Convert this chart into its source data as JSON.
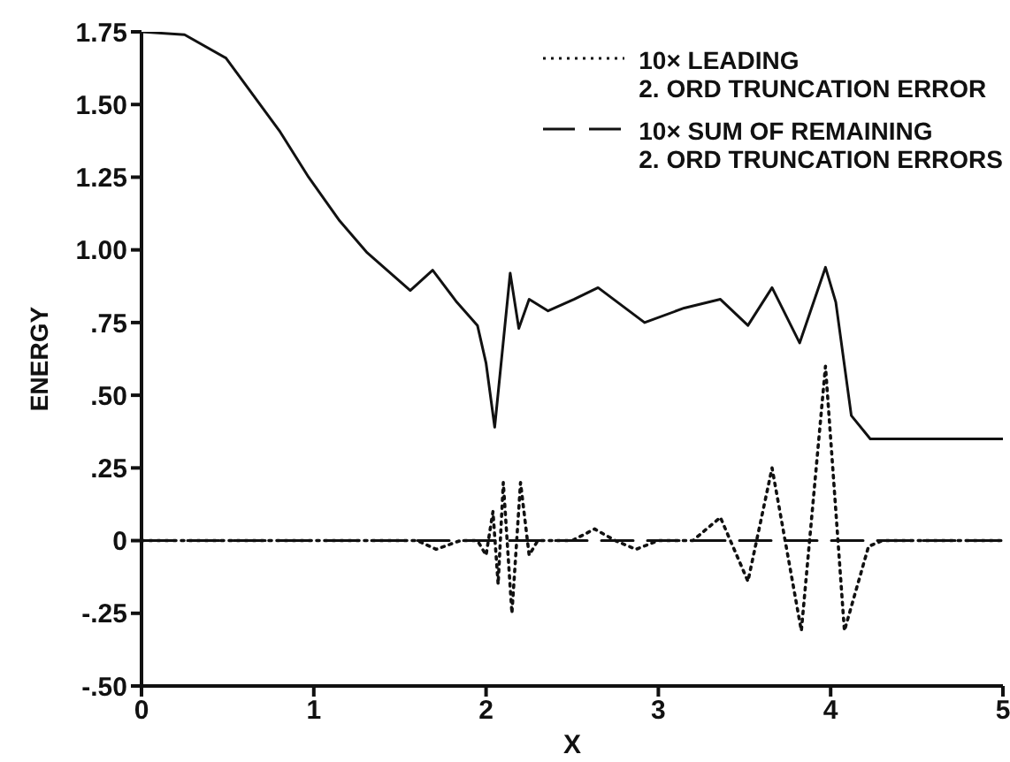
{
  "chart_data": {
    "type": "line",
    "xlabel": "X",
    "ylabel": "ENERGY",
    "xlim": [
      0,
      5
    ],
    "xticks": [
      0,
      1,
      2,
      3,
      4,
      5
    ],
    "ylim": [
      -0.5,
      1.75
    ],
    "yticks": [
      {
        "value": -0.5,
        "label": "-.50"
      },
      {
        "value": -0.25,
        "label": "-.25"
      },
      0,
      {
        "value": 0.25,
        "label": ".25"
      },
      {
        "value": 0.5,
        "label": ".50"
      },
      {
        "value": 0.75,
        "label": ".75"
      },
      {
        "value": 1,
        "label": "1.00"
      },
      {
        "value": 1.25,
        "label": "1.25"
      },
      {
        "value": 1.5,
        "label": "1.50"
      },
      {
        "value": 1.75,
        "label": "1.75"
      }
    ],
    "grid": false,
    "legend": "top right",
    "marker": "none",
    "series": [
      {
        "color": "#111111",
        "line_style": "solid",
        "x": [
          0,
          0.25,
          0.49,
          0.8,
          0.97,
          1.15,
          1.31,
          1.56,
          1.69,
          1.83,
          1.95,
          2.0,
          2.05,
          2.14,
          2.19,
          2.25,
          2.36,
          2.51,
          2.65,
          2.92,
          3.15,
          3.36,
          3.52,
          3.66,
          3.82,
          3.97,
          4.03,
          4.12,
          4.23,
          4.5,
          5
        ],
        "values": [
          1.75,
          1.74,
          1.66,
          1.41,
          1.25,
          1.1,
          0.99,
          0.86,
          0.93,
          0.82,
          0.74,
          0.61,
          0.39,
          0.92,
          0.73,
          0.83,
          0.79,
          0.83,
          0.87,
          0.75,
          0.8,
          0.83,
          0.74,
          0.87,
          0.68,
          0.94,
          0.82,
          0.43,
          0.35,
          0.35,
          0.35
        ]
      },
      {
        "name": "10× LEADING\n2. ORD TRUNCATION ERROR",
        "color": "#111111",
        "line_style": "dotted",
        "x": [
          0,
          1.6,
          1.71,
          1.85,
          1.95,
          2.0,
          2.04,
          2.07,
          2.1,
          2.15,
          2.2,
          2.25,
          2.3,
          2.5,
          2.63,
          2.75,
          2.87,
          3.0,
          3.2,
          3.36,
          3.52,
          3.66,
          3.83,
          3.97,
          4.08,
          4.22,
          4.3,
          5
        ],
        "values": [
          0,
          0,
          -0.03,
          0,
          0,
          -0.05,
          0.1,
          -0.15,
          0.2,
          -0.25,
          0.2,
          -0.05,
          0,
          0,
          0.04,
          0,
          -0.03,
          0,
          0,
          0.08,
          -0.14,
          0.25,
          -0.31,
          0.6,
          -0.31,
          -0.02,
          0,
          0
        ]
      },
      {
        "name": "10× SUM OF REMAINING\n2. ORD TRUNCATION ERRORS",
        "color": "#111111",
        "line_style": "dashed",
        "x": [
          0,
          5
        ],
        "values": [
          0,
          0
        ]
      }
    ]
  }
}
